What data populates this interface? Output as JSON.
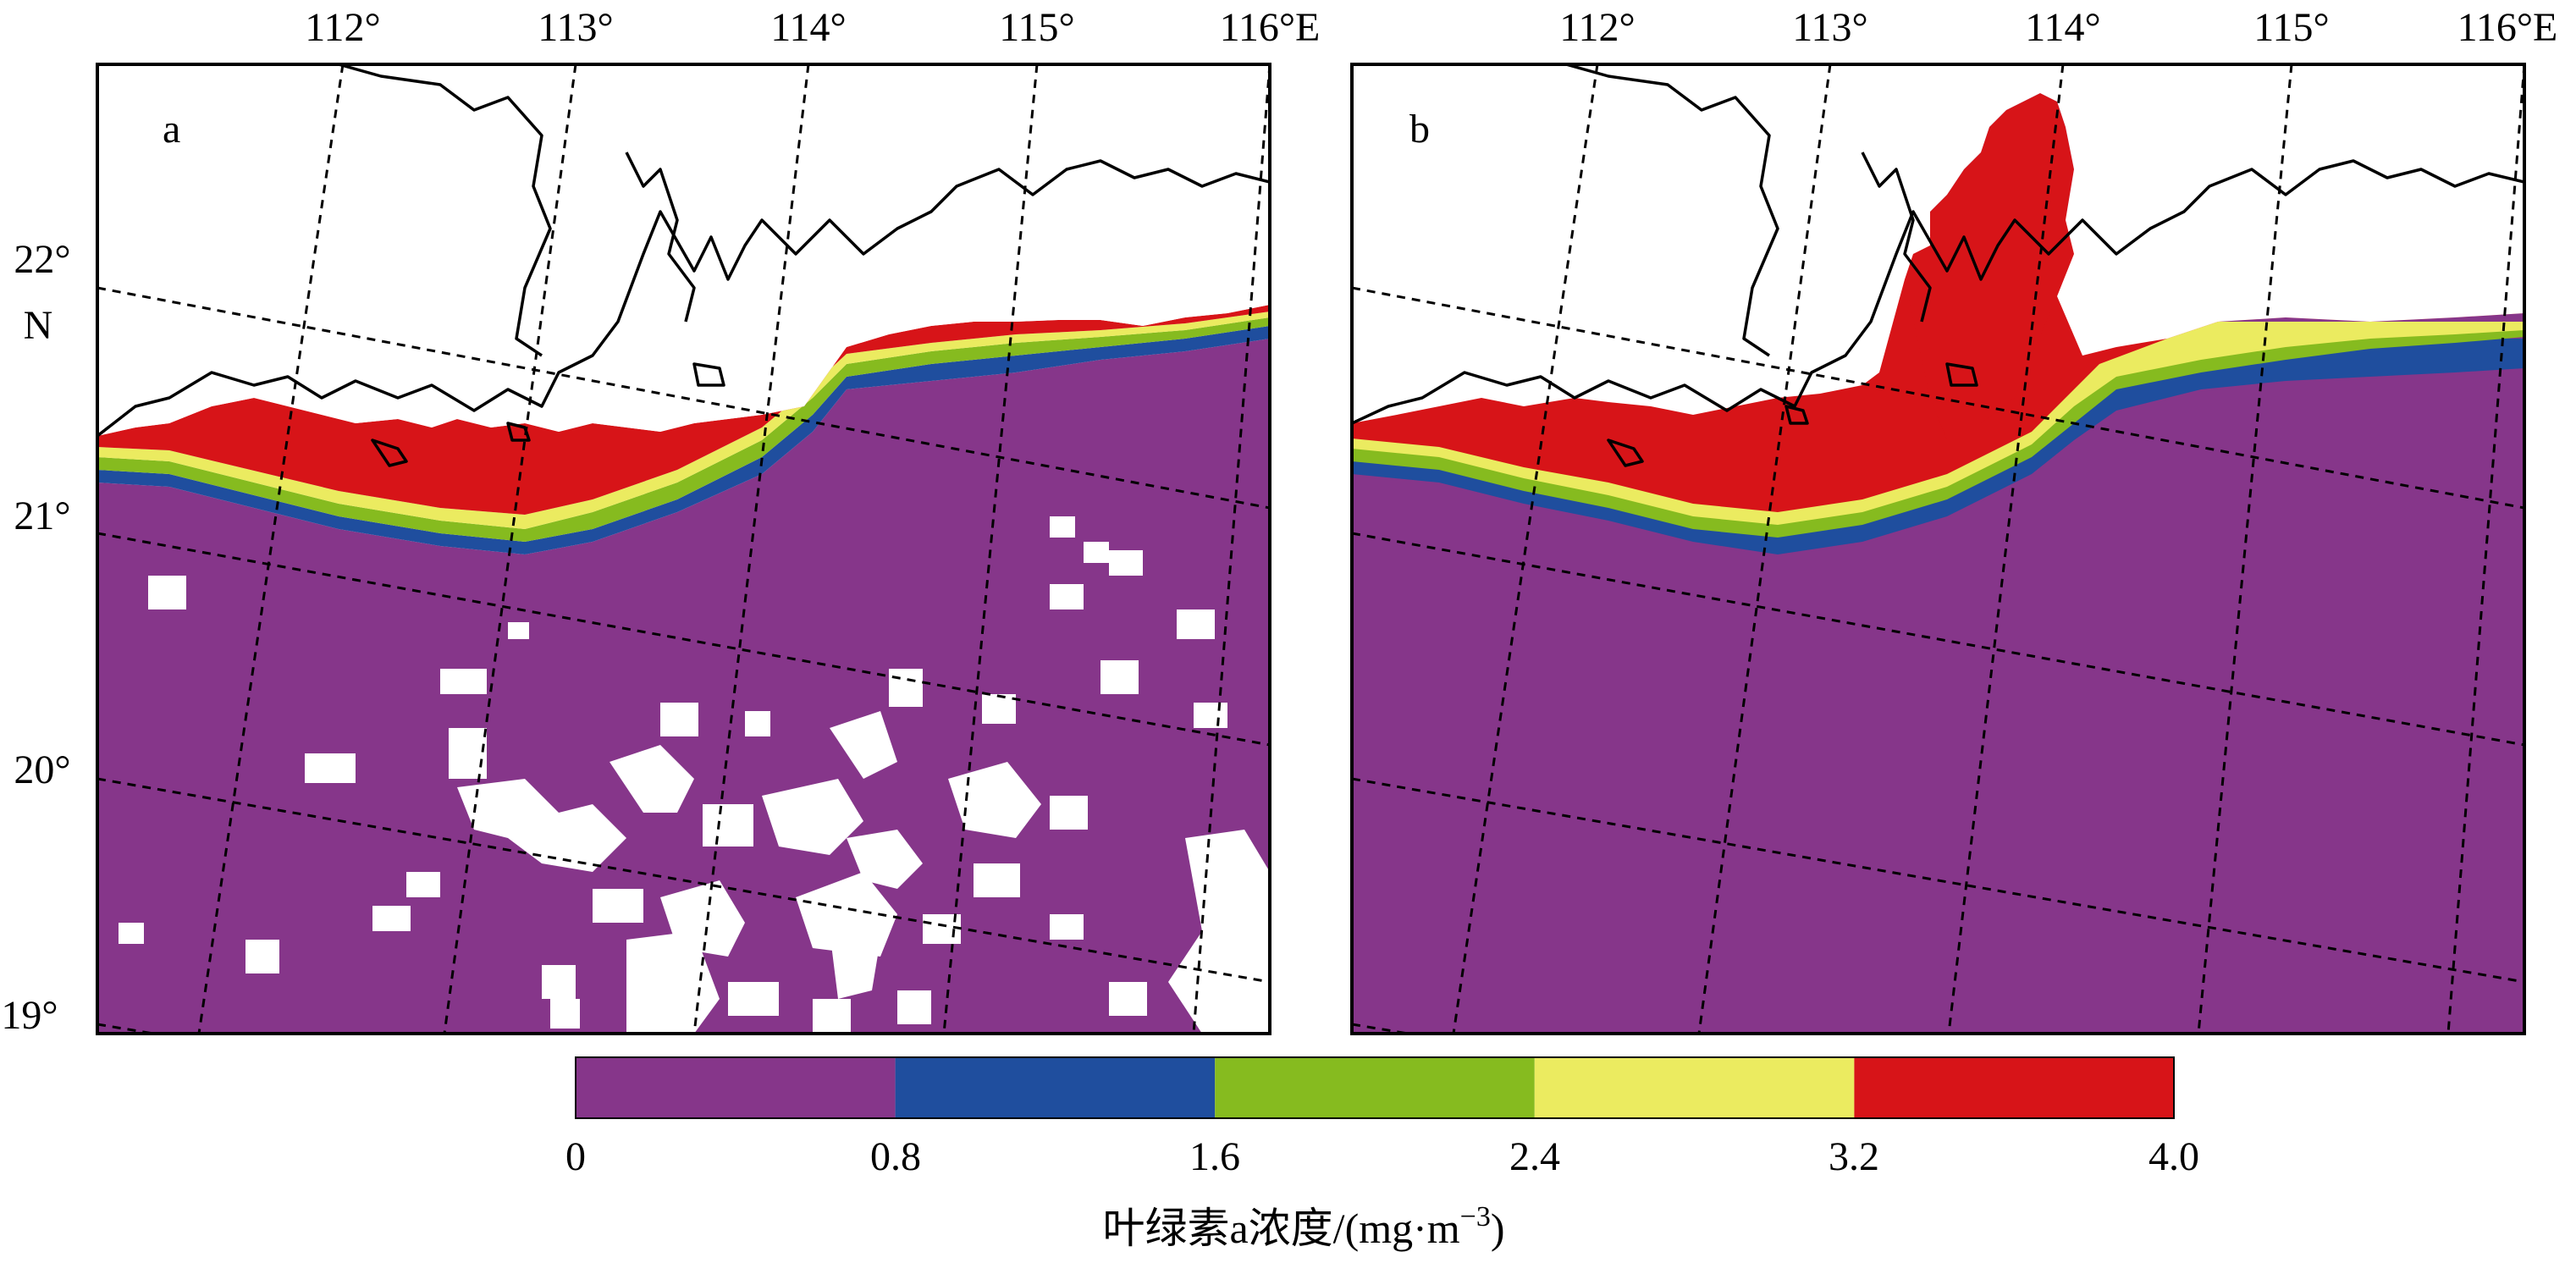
{
  "map": {
    "lon_labels": [
      "112°",
      "113°",
      "114°",
      "115°",
      "116°E"
    ],
    "lat_labels": [
      "22°",
      "N",
      "21°",
      "20°",
      "19°"
    ],
    "panels": [
      {
        "letter": "a"
      },
      {
        "letter": "b"
      }
    ]
  },
  "colorbar": {
    "ticks": [
      "0",
      "0.8",
      "1.6",
      "2.4",
      "3.2",
      "4.0"
    ],
    "title": "叶绿素a浓度/(mg·m",
    "title_sup": "−3",
    "title_end": ")",
    "bins": [
      {
        "range": [
          0,
          0.8
        ],
        "color": "#86368a"
      },
      {
        "range": [
          0.8,
          1.6
        ],
        "color": "#1f4e9e"
      },
      {
        "range": [
          1.6,
          2.4
        ],
        "color": "#86bb1f"
      },
      {
        "range": [
          2.4,
          3.2
        ],
        "color": "#ebeb60"
      },
      {
        "range": [
          3.2,
          4.0
        ],
        "color": "#d71418"
      }
    ]
  }
}
